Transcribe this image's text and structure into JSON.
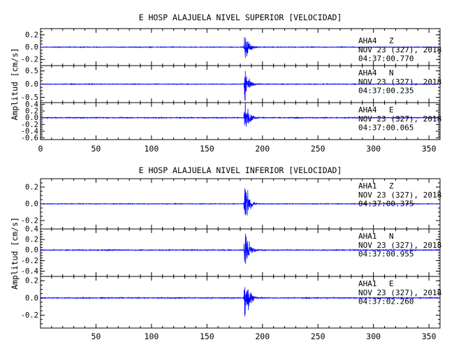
{
  "chart_data": [
    {
      "type": "line",
      "title": "E HOSP ALAJUELA NIVEL SUPERIOR [VELOCIDAD]",
      "ylabel": "Amplitud [cm/s]",
      "xlabel": "",
      "xlim": [
        0,
        360
      ],
      "x_ticks": [
        0,
        50,
        100,
        150,
        200,
        250,
        300,
        350
      ],
      "minor_x_step": 10,
      "line_color": "#0000ff",
      "channels": [
        {
          "station": "AHA4",
          "component": "Z",
          "date": "NOV 23 (327), 2018",
          "time": "04:37:00.770",
          "ylim": [
            -0.3,
            0.3
          ],
          "y_ticks": [
            0.2,
            0.0,
            -0.2
          ],
          "y_tick_labels": [
            "0.2",
            "0.0",
            "-0.2"
          ],
          "onset_s": 183,
          "peak_amplitude": 0.26,
          "noise_amplitude": 0.004
        },
        {
          "station": "AHA4",
          "component": "N",
          "date": "NOV 23 (327), 2018",
          "time": "04:37:00.235",
          "ylim": [
            -0.7,
            0.7
          ],
          "y_ticks": [
            0.5,
            0.0,
            -0.5
          ],
          "y_tick_labels": [
            "0.5",
            "0.0",
            "-0.5"
          ],
          "onset_s": 183,
          "peak_amplitude": 0.6,
          "noise_amplitude": 0.01
        },
        {
          "station": "AHA4",
          "component": "E",
          "date": "NOV 23 (327), 2018",
          "time": "04:37:00.065",
          "ylim": [
            -0.65,
            0.45
          ],
          "y_ticks": [
            0.4,
            0.2,
            0.0,
            -0.2,
            -0.4,
            -0.6
          ],
          "y_tick_labels": [
            "0.4",
            "0.2",
            "0.0",
            "-0.2",
            "-0.4",
            "-0.6"
          ],
          "onset_s": 183,
          "peak_amplitude": 0.55,
          "noise_amplitude": 0.01
        }
      ]
    },
    {
      "type": "line",
      "title": "E HOSP ALAJUELA NIVEL INFERIOR [VELOCIDAD]",
      "ylabel": "Amplitud [cm/s]",
      "xlabel": "",
      "xlim": [
        0,
        360
      ],
      "x_ticks": [
        50,
        100,
        150,
        200,
        250,
        300,
        350
      ],
      "minor_x_step": 10,
      "line_color": "#0000ff",
      "channels": [
        {
          "station": "AHA1",
          "component": "Z",
          "date": "NOV 23 (327), 2018",
          "time": "04:37:00.375",
          "ylim": [
            -0.3,
            0.3
          ],
          "y_ticks": [
            0.2,
            0.0,
            -0.2
          ],
          "y_tick_labels": [
            "0.2",
            "0.0",
            "-0.2"
          ],
          "onset_s": 183,
          "peak_amplitude": 0.27,
          "noise_amplitude": 0.003
        },
        {
          "station": "AHA1",
          "component": "N",
          "date": "NOV 23 (327), 2018",
          "time": "04:37:00.955",
          "ylim": [
            -0.5,
            0.4
          ],
          "y_ticks": [
            0.4,
            0.2,
            0.0,
            -0.2,
            -0.4
          ],
          "y_tick_labels": [
            "0.4",
            "0.2",
            "0.0",
            "-0.2",
            "-0.4"
          ],
          "onset_s": 183,
          "peak_amplitude": 0.45,
          "noise_amplitude": 0.006
        },
        {
          "station": "AHA1",
          "component": "E",
          "date": "NOV 23 (327), 2018",
          "time": "04:37:02.260",
          "ylim": [
            -0.35,
            0.25
          ],
          "y_ticks": [
            0.2,
            0.0,
            -0.2
          ],
          "y_tick_labels": [
            "0.2",
            "0.0",
            "-0.2"
          ],
          "onset_s": 183,
          "peak_amplitude": 0.3,
          "noise_amplitude": 0.004
        }
      ]
    }
  ]
}
